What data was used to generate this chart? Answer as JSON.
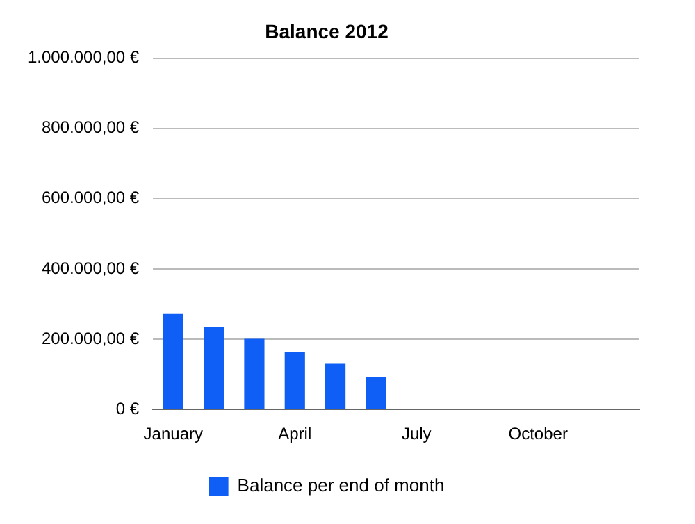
{
  "chart_data": {
    "type": "bar",
    "title": "Balance 2012",
    "categories": [
      "January",
      null,
      null,
      "April",
      null,
      null,
      "July",
      null,
      null,
      "October",
      null,
      null
    ],
    "series": [
      {
        "name": "Balance per end of month",
        "color": "#0f5ef5",
        "values": [
          272000,
          234000,
          201000,
          163000,
          130000,
          92000,
          null,
          null,
          null,
          null,
          null,
          null
        ]
      }
    ],
    "ylim": [
      0,
      1000000
    ],
    "yticks": [
      {
        "value": 0,
        "label": "0 €"
      },
      {
        "value": 200000,
        "label": "200.000,00 €"
      },
      {
        "value": 400000,
        "label": "400.000,00 €"
      },
      {
        "value": 600000,
        "label": "600.000,00 €"
      },
      {
        "value": 800000,
        "label": "800.000,00 €"
      },
      {
        "value": 1000000,
        "label": "1.000.000,00 €"
      }
    ],
    "grid": "y",
    "legend": "bottom"
  }
}
